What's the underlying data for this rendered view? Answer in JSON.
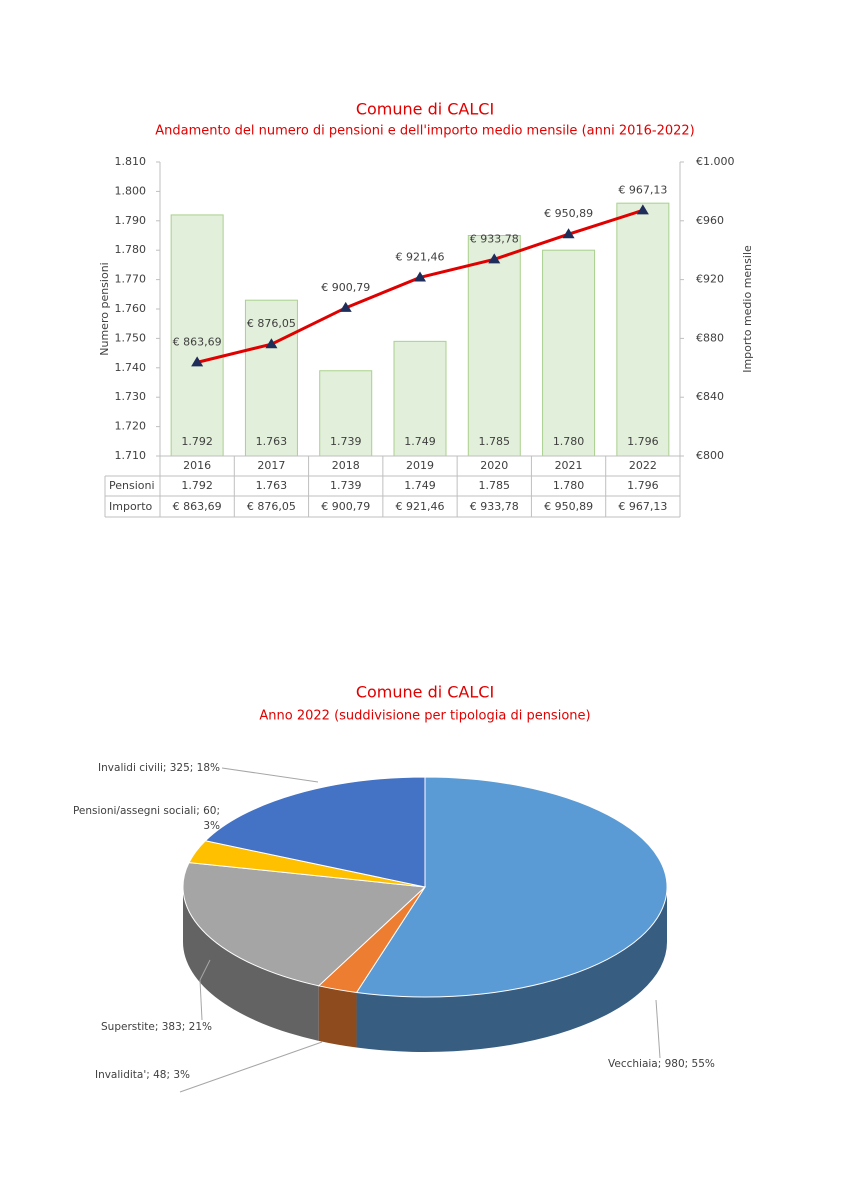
{
  "chart_data": [
    {
      "type": "bar-line",
      "title": "Comune di CALCI",
      "subtitle": "Andamento del numero di pensioni e dell'importo medio mensile (anni 2016-2022)",
      "y_label": "Numero pensioni",
      "y2_label": "Importo medio mensile",
      "categories": [
        "2016",
        "2017",
        "2018",
        "2019",
        "2020",
        "2021",
        "2022"
      ],
      "series": [
        {
          "name": "Pensioni",
          "type": "bar",
          "color": "#e2efda",
          "border": "#a9d08e",
          "values": [
            1792,
            1763,
            1739,
            1749,
            1785,
            1780,
            1796
          ],
          "value_labels": [
            "1.792",
            "1.763",
            "1.739",
            "1.749",
            "1.785",
            "1.780",
            "1.796"
          ]
        },
        {
          "name": "Importo",
          "type": "line",
          "axis": "y2",
          "color": "#e00000",
          "marker_color": "#1f2d5a",
          "values": [
            863.69,
            876.05,
            900.79,
            921.46,
            933.78,
            950.89,
            967.13
          ],
          "value_labels": [
            "€ 863,69",
            "€ 876,05",
            "€ 900,79",
            "€ 921,46",
            "€ 933,78",
            "€ 950,89",
            "€ 967,13"
          ]
        }
      ],
      "ylim": [
        1710,
        1810
      ],
      "yticks": [
        {
          "value": 1710,
          "label": "1.710"
        },
        {
          "value": 1720,
          "label": "1.720"
        },
        {
          "value": 1730,
          "label": "1.730"
        },
        {
          "value": 1740,
          "label": "1.740"
        },
        {
          "value": 1750,
          "label": "1.750"
        },
        {
          "value": 1760,
          "label": "1.760"
        },
        {
          "value": 1770,
          "label": "1.770"
        },
        {
          "value": 1780,
          "label": "1.780"
        },
        {
          "value": 1790,
          "label": "1.790"
        },
        {
          "value": 1800,
          "label": "1.800"
        },
        {
          "value": 1810,
          "label": "1.810"
        }
      ],
      "y2lim": [
        800,
        1000
      ],
      "y2ticks": [
        {
          "value": 800,
          "label": "€800"
        },
        {
          "value": 840,
          "label": "€840"
        },
        {
          "value": 880,
          "label": "€880"
        },
        {
          "value": 920,
          "label": "€920"
        },
        {
          "value": 960,
          "label": "€960"
        },
        {
          "value": 1000,
          "label": "€1.000"
        }
      ],
      "data_table": true
    },
    {
      "type": "pie3d",
      "title": "Comune di CALCI",
      "subtitle": "Anno 2022 (suddivisione per tipologia di pensione)",
      "categories": [
        "Vecchiaia",
        "Invalidita'",
        "Superstite",
        "Pensioni/assegni sociali",
        "Invalidi civili"
      ],
      "values": [
        980,
        48,
        383,
        60,
        325
      ],
      "value_labels": [
        "Vecchiaia; 980; 55%",
        "Invalidita'; 48; 3%",
        "Superstite; 383; 21%",
        "Pensioni/assegni sociali; 60; 3%",
        "Invalidi civili; 325; 18%"
      ],
      "colors": [
        "#5b9bd5",
        "#ed7d31",
        "#a5a5a5",
        "#ffc000",
        "#4472c4"
      ]
    }
  ]
}
